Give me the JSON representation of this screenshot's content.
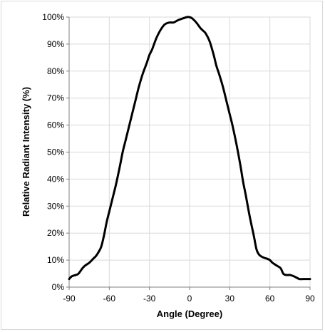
{
  "chart_data": {
    "type": "line",
    "title": "",
    "xlabel": "Angle (Degree)",
    "ylabel": "Relative Radiant Intensity (%)",
    "xlim": [
      -90,
      90
    ],
    "ylim": [
      0,
      100
    ],
    "x_ticks": [
      -90,
      -60,
      -30,
      0,
      30,
      60,
      90
    ],
    "x_tick_labels": [
      "-90",
      "-60",
      "-30",
      "0",
      "30",
      "60",
      "90"
    ],
    "y_ticks": [
      0,
      10,
      20,
      30,
      40,
      50,
      60,
      70,
      80,
      90,
      100
    ],
    "y_tick_labels": [
      "0%",
      "10%",
      "20%",
      "30%",
      "40%",
      "50%",
      "60%",
      "70%",
      "80%",
      "90%",
      "100%"
    ],
    "grid": true,
    "legend": "none",
    "line_color": "#000000",
    "series": [
      {
        "x": [
          -90,
          -88,
          -85,
          -83,
          -80,
          -78,
          -75,
          -72,
          -70,
          -68,
          -66,
          -64,
          -62,
          -60,
          -58,
          -55,
          -52,
          -50,
          -48,
          -45,
          -42,
          -40,
          -38,
          -35,
          -32,
          -30,
          -28,
          -25,
          -22,
          -20,
          -18,
          -15,
          -12,
          -10,
          -8,
          -5,
          -2,
          0,
          2,
          5,
          8,
          10,
          12,
          15,
          18,
          20,
          22,
          25,
          28,
          30,
          32,
          35,
          38,
          40,
          42,
          45,
          48,
          50,
          52,
          55,
          58,
          60,
          62,
          65,
          68,
          70,
          72,
          75,
          78,
          80,
          82,
          85,
          88,
          90
        ],
        "y": [
          3,
          4,
          4.5,
          5,
          7,
          8,
          9,
          10.5,
          11.5,
          13,
          15,
          19,
          24,
          28,
          32,
          38,
          45,
          50,
          54,
          60,
          66,
          70,
          74,
          79,
          83,
          86,
          88,
          92,
          95,
          96.5,
          97.5,
          98,
          98,
          98.5,
          99,
          99.5,
          100,
          100,
          99.5,
          98,
          96,
          95,
          94,
          91,
          86,
          82,
          79,
          74,
          68,
          64,
          60,
          53,
          45,
          39,
          34,
          26,
          19,
          14,
          12,
          11,
          10.5,
          10,
          9,
          8,
          7,
          5,
          4.5,
          4.5,
          4,
          3.5,
          3,
          3,
          3,
          3
        ]
      }
    ]
  }
}
